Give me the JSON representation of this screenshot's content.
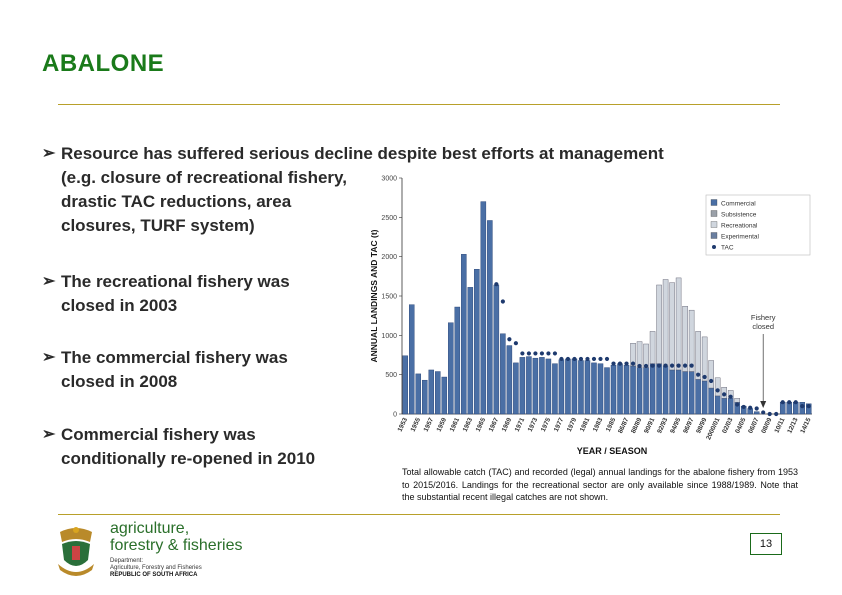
{
  "slide": {
    "title": "ABALONE",
    "bullets": [
      {
        "lines": [
          "Resource has suffered serious decline despite best efforts at management",
          "(e.g. closure of recreational fishery, drastic TAC reductions, area closures, TURF system)"
        ]
      },
      {
        "text": "The recreational fishery was closed in 2003"
      },
      {
        "text": "The commercial fishery was closed in 2008"
      },
      {
        "text": "Commercial fishery was conditionally re-opened in 2010"
      }
    ],
    "caption": "Total allowable catch (TAC) and recorded (legal) annual landings for the abalone fishery from 1953 to 2015/2016. Landings for the recreational sector are only available since 1988/1989. Note that the substantial recent illegal catches are not shown.",
    "page_number": "13"
  },
  "logo": {
    "line1": "agriculture,",
    "line2": "forestry & fisheries",
    "dept_line1": "Department:",
    "dept_line2": "Agriculture, Forestry and Fisheries",
    "dept_line3": "REPUBLIC OF SOUTH AFRICA"
  },
  "colors": {
    "title": "#1a7a1a",
    "rule": "#b8a02a",
    "bar_commercial": "#4a6fa5",
    "bar_light": "#d0d6de",
    "tac_dot": "#1e3a6e"
  },
  "chart_data": {
    "type": "bar",
    "xlabel": "YEAR / SEASON",
    "ylabel": "ANNUAL LANDINGS AND TAC (t)",
    "ylim": [
      0,
      3000
    ],
    "yticks": [
      0,
      500,
      1000,
      1500,
      2000,
      2500,
      3000
    ],
    "xtick_labels": [
      "1953",
      "1955",
      "1957",
      "1959",
      "1961",
      "1963",
      "1965",
      "1967",
      "1969",
      "1971",
      "1973",
      "1975",
      "1977",
      "1979",
      "1981",
      "1983",
      "1985",
      "86/87",
      "88/89",
      "90/91",
      "92/93",
      "94/95",
      "96/97",
      "98/99",
      "2000/01",
      "02/03",
      "04/05",
      "06/07",
      "08/09",
      "10/11",
      "12/13",
      "14/15"
    ],
    "legend": [
      "Commercial",
      "Subsistence",
      "Recreational",
      "Experimental",
      "TAC"
    ],
    "legend_placement": "top-right",
    "annotation": "Fishery closed",
    "annotation_year_index": 55,
    "series": [
      {
        "name": "Commercial",
        "values": [
          740,
          1390,
          510,
          430,
          560,
          540,
          470,
          1160,
          1360,
          2030,
          1610,
          1840,
          2700,
          2460,
          1640,
          1020,
          870,
          650,
          720,
          730,
          710,
          720,
          700,
          640,
          690,
          700,
          700,
          680,
          680,
          650,
          640,
          590,
          620,
          640,
          620,
          610,
          590,
          590,
          640,
          640,
          610,
          560,
          560,
          540,
          540,
          440,
          420,
          330,
          230,
          200,
          200,
          150,
          100,
          70,
          30,
          0,
          0,
          0,
          150,
          150,
          150,
          150,
          130
        ]
      },
      {
        "name": "Experimental",
        "values": [
          0,
          0,
          0,
          0,
          0,
          0,
          0,
          0,
          0,
          0,
          0,
          0,
          0,
          0,
          0,
          0,
          0,
          0,
          0,
          0,
          0,
          0,
          0,
          0,
          0,
          0,
          0,
          0,
          0,
          0,
          0,
          0,
          0,
          0,
          0,
          0,
          0,
          0,
          0,
          0,
          0,
          0,
          0,
          0,
          0,
          0,
          0,
          0,
          0,
          0,
          0,
          0,
          0,
          0,
          0,
          0,
          0,
          0,
          0,
          0,
          0,
          0,
          0
        ]
      },
      {
        "name": "Recreational",
        "values": [
          0,
          0,
          0,
          0,
          0,
          0,
          0,
          0,
          0,
          0,
          0,
          0,
          0,
          0,
          0,
          0,
          0,
          0,
          0,
          0,
          0,
          0,
          0,
          0,
          0,
          0,
          0,
          0,
          0,
          0,
          0,
          0,
          0,
          0,
          0,
          290,
          330,
          300,
          410,
          1000,
          1100,
          1110,
          1170,
          830,
          780,
          610,
          560,
          350,
          230,
          140,
          100,
          50,
          0,
          0,
          0,
          0,
          0,
          0,
          0,
          0,
          0,
          0,
          0
        ]
      },
      {
        "name": "Subsistence",
        "values": [
          0,
          0,
          0,
          0,
          0,
          0,
          0,
          0,
          0,
          0,
          0,
          0,
          0,
          0,
          0,
          0,
          0,
          0,
          0,
          0,
          0,
          0,
          0,
          0,
          0,
          0,
          0,
          0,
          0,
          0,
          0,
          0,
          0,
          0,
          0,
          0,
          0,
          0,
          0,
          0,
          0,
          0,
          0,
          0,
          0,
          0,
          0,
          0,
          0,
          0,
          0,
          0,
          0,
          0,
          0,
          0,
          0,
          0,
          0,
          0,
          0,
          0,
          0
        ]
      },
      {
        "name": "TAC",
        "values": [
          null,
          null,
          null,
          null,
          null,
          null,
          null,
          null,
          null,
          null,
          null,
          null,
          null,
          null,
          1650,
          1430,
          950,
          900,
          770,
          770,
          770,
          770,
          770,
          770,
          700,
          700,
          700,
          700,
          700,
          700,
          700,
          700,
          640,
          640,
          640,
          640,
          610,
          610,
          615,
          615,
          615,
          615,
          615,
          615,
          615,
          500,
          470,
          420,
          300,
          250,
          220,
          120,
          90,
          80,
          70,
          20,
          0,
          0,
          150,
          150,
          150,
          100,
          100
        ]
      }
    ]
  }
}
